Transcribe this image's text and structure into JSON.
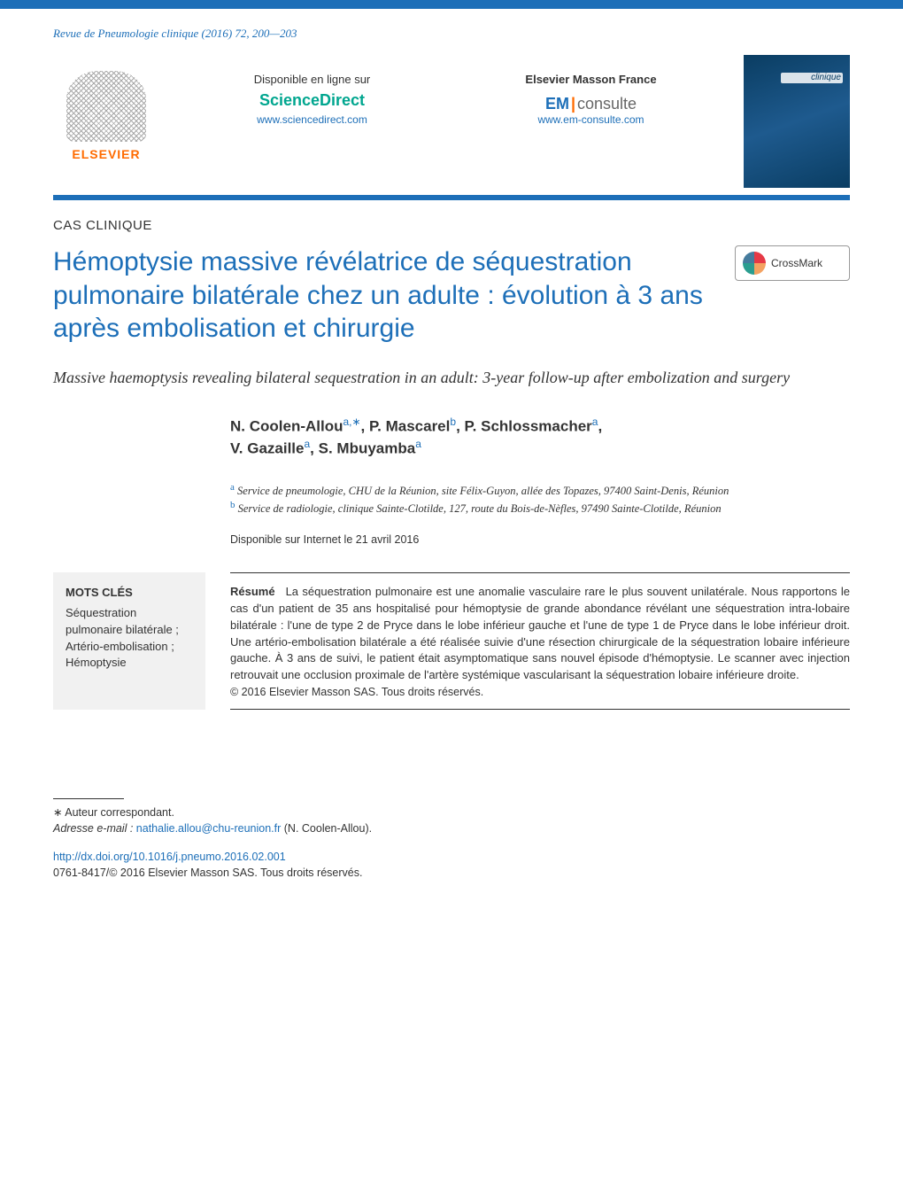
{
  "journal_ref": "Revue de Pneumologie clinique (2016) 72, 200—203",
  "header": {
    "elsevier": "ELSEVIER",
    "available_label": "Disponible en ligne sur",
    "sciencedirect": "ScienceDirect",
    "sciencedirect_url": "www.sciencedirect.com",
    "masson_label": "Elsevier Masson France",
    "em": "EM",
    "consulte": "consulte",
    "em_url": "www.em-consulte.com",
    "cover_caption": "clinique"
  },
  "article_type": "CAS CLINIQUE",
  "title": "Hémoptysie massive révélatrice de séquestration pulmonaire bilatérale chez un adulte : évolution à 3 ans après embolisation et chirurgie",
  "crossmark": "CrossMark",
  "subtitle": "Massive haemoptysis revealing bilateral sequestration in an adult: 3-year follow-up after embolization and surgery",
  "authors_line1_pre": "N. Coolen-Allou",
  "authors_line1_sup1": "a,∗",
  "authors_line1_mid1": ", P. Mascarel",
  "authors_line1_sup2": "b",
  "authors_line1_mid2": ", P. Schlossmacher",
  "authors_line1_sup3": "a",
  "authors_line1_end": ",",
  "authors_line2_pre": "V. Gazaille",
  "authors_line2_sup1": "a",
  "authors_line2_mid": ", S. Mbuyamba",
  "authors_line2_sup2": "a",
  "affiliations": {
    "a_sup": "a",
    "a_text": " Service de pneumologie, CHU de la Réunion, site Félix-Guyon, allée des Topazes, 97400 Saint-Denis, Réunion",
    "b_sup": "b",
    "b_text": " Service de radiologie, clinique Sainte-Clotilde, 127, route du Bois-de-Nèfles, 97490 Sainte-Clotilde, Réunion"
  },
  "online_date": "Disponible sur Internet le 21 avril 2016",
  "keywords": {
    "title": "MOTS CLÉS",
    "items": "Séquestration pulmonaire bilatérale ; Artério-embolisation ; Hémoptysie"
  },
  "abstract": {
    "lead": "Résumé",
    "body": "La séquestration pulmonaire est une anomalie vasculaire rare le plus souvent unilatérale. Nous rapportons le cas d'un patient de 35 ans hospitalisé pour hémoptysie de grande abondance révélant une séquestration intra-lobaire bilatérale : l'une de type 2 de Pryce dans le lobe inférieur gauche et l'une de type 1 de Pryce dans le lobe inférieur droit. Une artério-embolisation bilatérale a été réalisée suivie d'une résection chirurgicale de la séquestration lobaire inférieure gauche. À 3 ans de suivi, le patient était asymptomatique sans nouvel épisode d'hémoptysie. Le scanner avec injection retrouvait une occlusion proximale de l'artère systémique vascularisant la séquestration lobaire inférieure droite.",
    "copyright": "© 2016 Elsevier Masson SAS. Tous droits réservés."
  },
  "footer": {
    "corresp": "∗ Auteur correspondant.",
    "email_label": "Adresse e-mail :",
    "email": "nathalie.allou@chu-reunion.fr",
    "email_author": " (N. Coolen-Allou).",
    "doi": "http://dx.doi.org/10.1016/j.pneumo.2016.02.001",
    "issn": "0761-8417/© 2016 Elsevier Masson SAS. Tous droits réservés."
  },
  "colors": {
    "brand_blue": "#1d6fb8",
    "teal": "#00a68f",
    "orange": "#ff6b00",
    "text": "#333333",
    "keyword_bg": "#f1f1f1"
  }
}
